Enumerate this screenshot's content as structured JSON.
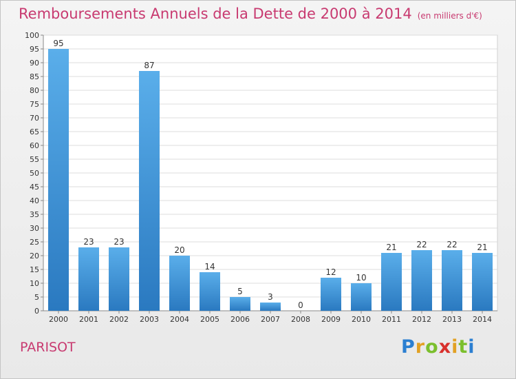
{
  "header": {
    "title": "Remboursements Annuels de la Dette de 2000 à 2014",
    "unit": "(en milliers d'€)"
  },
  "footer": {
    "city": "PARISOT",
    "logo": "Proxiti"
  },
  "colors": {
    "title": "#c83a70",
    "bar_light": "#5aaeea",
    "bar_dark": "#2a79c0"
  },
  "chart_data": {
    "type": "bar",
    "title": "Remboursements Annuels de la Dette de 2000 à 2014",
    "xlabel": "",
    "ylabel": "",
    "categories": [
      "2000",
      "2001",
      "2002",
      "2003",
      "2004",
      "2005",
      "2006",
      "2007",
      "2008",
      "2009",
      "2010",
      "2011",
      "2012",
      "2013",
      "2014"
    ],
    "values": [
      95,
      23,
      23,
      87,
      20,
      14,
      5,
      3,
      0,
      12,
      10,
      21,
      22,
      22,
      21
    ],
    "ylim": [
      0,
      100
    ],
    "yticks": [
      0,
      5,
      10,
      15,
      20,
      25,
      30,
      35,
      40,
      45,
      50,
      55,
      60,
      65,
      70,
      75,
      80,
      85,
      90,
      95,
      100
    ],
    "grid": true,
    "data_labels": true
  }
}
